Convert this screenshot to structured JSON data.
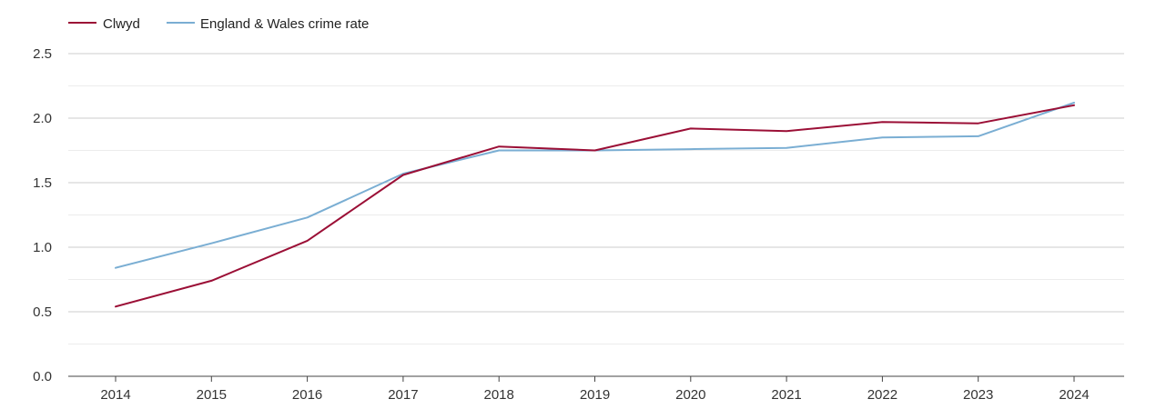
{
  "chart_data": {
    "type": "line",
    "title": "",
    "xlabel": "",
    "ylabel": "",
    "categories": [
      "2014",
      "2015",
      "2016",
      "2017",
      "2018",
      "2019",
      "2020",
      "2021",
      "2022",
      "2023",
      "2024"
    ],
    "yticks": [
      "0.0",
      "0.5",
      "1.0",
      "1.5",
      "2.0",
      "2.5"
    ],
    "ylim": [
      0,
      2.5
    ],
    "grid": true,
    "legend_position": "top-left",
    "series": [
      {
        "name": "Clwyd",
        "color": "#9b0f36",
        "values": [
          0.54,
          0.74,
          1.05,
          1.56,
          1.78,
          1.75,
          1.92,
          1.9,
          1.97,
          1.96,
          2.1
        ]
      },
      {
        "name": "England & Wales crime rate",
        "color": "#7aaed3",
        "values": [
          0.84,
          1.03,
          1.23,
          1.57,
          1.75,
          1.75,
          1.76,
          1.77,
          1.85,
          1.86,
          2.12
        ]
      }
    ]
  }
}
